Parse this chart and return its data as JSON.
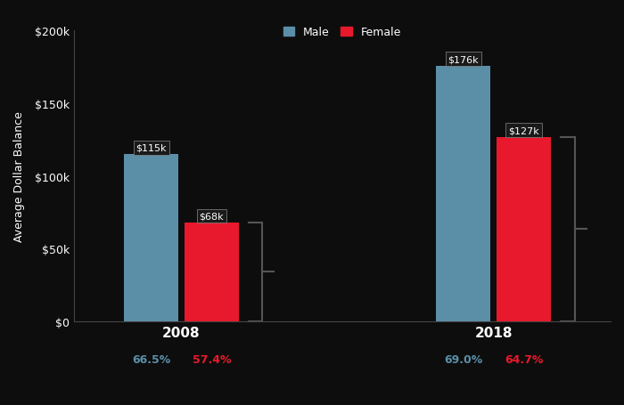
{
  "years": [
    "2008",
    "2018"
  ],
  "male_values": [
    115000,
    176000
  ],
  "female_values": [
    68000,
    127000
  ],
  "male_labels": [
    "$115k",
    "$176k"
  ],
  "female_labels": [
    "$68k",
    "$127k"
  ],
  "male_color": "#5b8fa8",
  "female_color": "#e8192c",
  "background_color": "#0d0d0d",
  "ylabel": "Average Dollar Balance",
  "ylim": [
    0,
    200000
  ],
  "yticks": [
    0,
    50000,
    100000,
    150000,
    200000
  ],
  "ytick_labels": [
    "$0",
    "$50k",
    "$100k",
    "$150k",
    "$200k"
  ],
  "bar_width": 0.28,
  "x_positions": [
    1.0,
    2.6
  ],
  "xlim": [
    0.45,
    3.2
  ],
  "percent_male": [
    "66.5%",
    "69.0%"
  ],
  "percent_female": [
    "57.4%",
    "64.7%"
  ],
  "percent_male_color": "#5b8fa8",
  "percent_female_color": "#e8192c",
  "legend_labels": [
    "Male",
    "Female"
  ],
  "text_color": "#ffffff",
  "axis_color": "#444444",
  "bracket_color": "#333333",
  "label_box_color": "#1a1a1a"
}
